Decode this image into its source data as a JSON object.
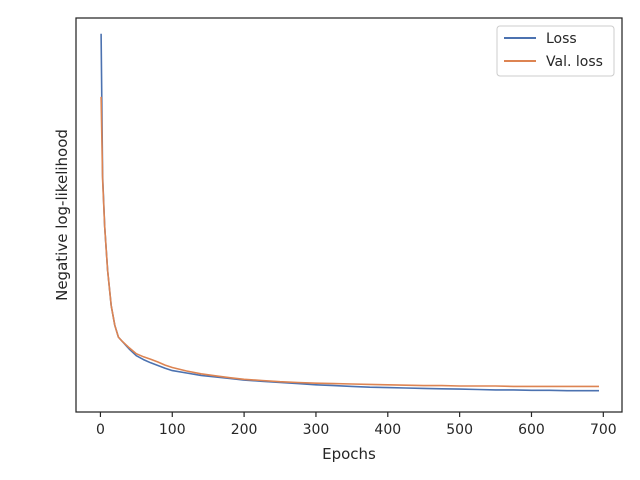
{
  "chart_data": {
    "type": "line",
    "title": "",
    "xlabel": "Epochs",
    "ylabel": "Negative log-likelihood",
    "xlim": [
      -34,
      726
    ],
    "ylim": [
      0.0,
      1.0
    ],
    "xticks": [
      0,
      100,
      200,
      300,
      400,
      500,
      600,
      700
    ],
    "xtick_labels": [
      "0",
      "100",
      "200",
      "300",
      "400",
      "500",
      "600",
      "700"
    ],
    "y_tick_labels_shown": false,
    "grid": false,
    "legend": "top-right",
    "series": [
      {
        "name": "Loss",
        "color": "#4c72b0",
        "points": [
          [
            1,
            0.96
          ],
          [
            3,
            0.6
          ],
          [
            6,
            0.47
          ],
          [
            10,
            0.36
          ],
          [
            15,
            0.27
          ],
          [
            20,
            0.22
          ],
          [
            25,
            0.19
          ],
          [
            30,
            0.18
          ],
          [
            40,
            0.16
          ],
          [
            50,
            0.143
          ],
          [
            60,
            0.133
          ],
          [
            70,
            0.125
          ],
          [
            80,
            0.118
          ],
          [
            90,
            0.111
          ],
          [
            100,
            0.105
          ],
          [
            120,
            0.099
          ],
          [
            140,
            0.093
          ],
          [
            160,
            0.089
          ],
          [
            180,
            0.085
          ],
          [
            200,
            0.081
          ],
          [
            225,
            0.078
          ],
          [
            250,
            0.075
          ],
          [
            275,
            0.072
          ],
          [
            300,
            0.069
          ],
          [
            325,
            0.067
          ],
          [
            350,
            0.065
          ],
          [
            375,
            0.063
          ],
          [
            400,
            0.062
          ],
          [
            425,
            0.061
          ],
          [
            450,
            0.06
          ],
          [
            475,
            0.059
          ],
          [
            500,
            0.058
          ],
          [
            525,
            0.057
          ],
          [
            550,
            0.056
          ],
          [
            575,
            0.056
          ],
          [
            600,
            0.055
          ],
          [
            625,
            0.055
          ],
          [
            650,
            0.054
          ],
          [
            675,
            0.054
          ],
          [
            694,
            0.054
          ]
        ]
      },
      {
        "name": "Val. loss",
        "color": "#dd8452",
        "points": [
          [
            1,
            0.8
          ],
          [
            3,
            0.59
          ],
          [
            6,
            0.47
          ],
          [
            10,
            0.36
          ],
          [
            15,
            0.27
          ],
          [
            20,
            0.22
          ],
          [
            25,
            0.19
          ],
          [
            30,
            0.18
          ],
          [
            40,
            0.163
          ],
          [
            50,
            0.148
          ],
          [
            60,
            0.14
          ],
          [
            70,
            0.134
          ],
          [
            80,
            0.127
          ],
          [
            90,
            0.119
          ],
          [
            100,
            0.113
          ],
          [
            120,
            0.104
          ],
          [
            140,
            0.097
          ],
          [
            160,
            0.092
          ],
          [
            180,
            0.087
          ],
          [
            200,
            0.083
          ],
          [
            225,
            0.08
          ],
          [
            250,
            0.077
          ],
          [
            275,
            0.075
          ],
          [
            300,
            0.073
          ],
          [
            325,
            0.072
          ],
          [
            350,
            0.071
          ],
          [
            375,
            0.07
          ],
          [
            400,
            0.069
          ],
          [
            425,
            0.068
          ],
          [
            450,
            0.067
          ],
          [
            475,
            0.067
          ],
          [
            500,
            0.066
          ],
          [
            525,
            0.066
          ],
          [
            550,
            0.066
          ],
          [
            575,
            0.065
          ],
          [
            600,
            0.065
          ],
          [
            625,
            0.065
          ],
          [
            650,
            0.065
          ],
          [
            675,
            0.065
          ],
          [
            694,
            0.065
          ]
        ]
      }
    ]
  }
}
